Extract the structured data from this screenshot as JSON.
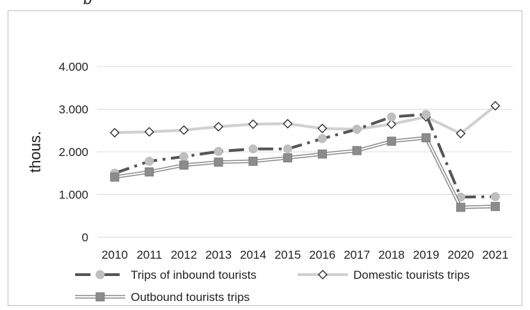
{
  "top_text": "p",
  "chart_data": {
    "type": "line",
    "title": "",
    "xlabel": "",
    "ylabel": "thous.",
    "ylim": [
      0,
      4000
    ],
    "yticks": [
      0,
      1000,
      2000,
      3000,
      4000
    ],
    "ytick_labels": [
      "0",
      "1.000",
      "2.000",
      "3.000",
      "4.000"
    ],
    "grid": true,
    "legend_position": "bottom",
    "categories": [
      "2010",
      "2011",
      "2012",
      "2013",
      "2014",
      "2015",
      "2016",
      "2017",
      "2018",
      "2019",
      "2020",
      "2021"
    ],
    "series": [
      {
        "name": "Trips of inbound tourists",
        "color": "#555555",
        "marker_color": "#bfbfbf",
        "marker": "circle",
        "style": "dash-dot",
        "values": [
          1500,
          1780,
          1890,
          2010,
          2070,
          2070,
          2310,
          2530,
          2820,
          2880,
          940,
          950
        ]
      },
      {
        "name": "Domestic tourists trips",
        "color": "#d0d0d0",
        "marker": "diamond",
        "style": "solid",
        "values": [
          2450,
          2470,
          2510,
          2590,
          2650,
          2660,
          2550,
          2530,
          2650,
          2820,
          2430,
          3080
        ]
      },
      {
        "name": "Outbound tourists trips",
        "color": "#8c8c8c",
        "marker": "square",
        "style": "double",
        "values": [
          1410,
          1530,
          1690,
          1760,
          1780,
          1860,
          1950,
          2030,
          2250,
          2330,
          700,
          720
        ]
      }
    ]
  }
}
